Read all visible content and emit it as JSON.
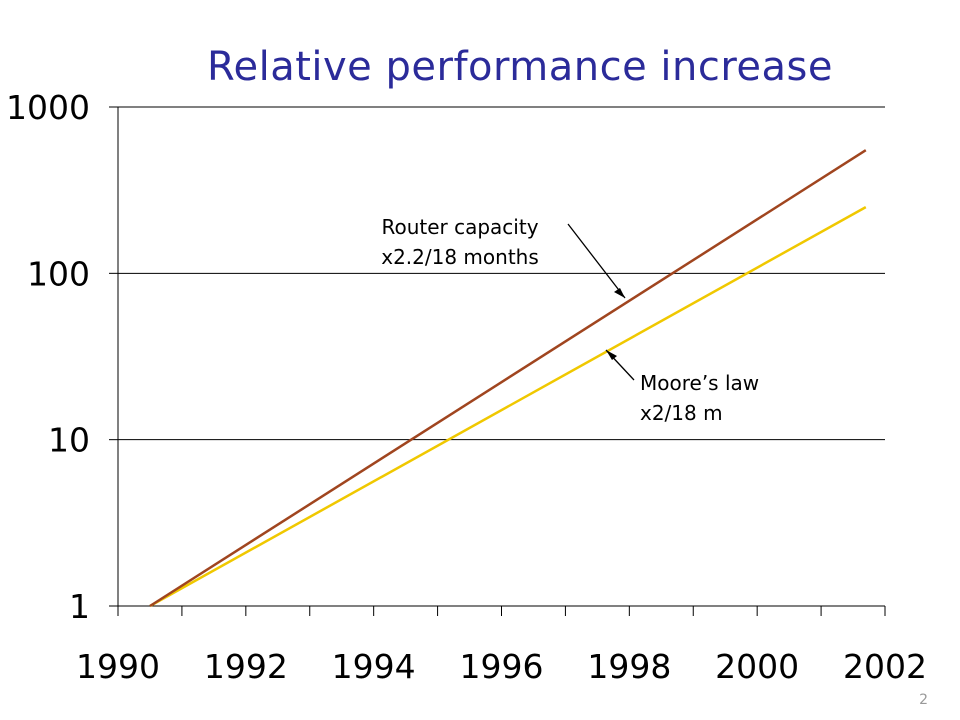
{
  "slide": {
    "title": "Relative performance increase",
    "page_number": "2"
  },
  "chart_data": {
    "type": "line",
    "title": "Relative performance increase",
    "xlabel": "",
    "ylabel": "",
    "y_scale": "log",
    "xlim": [
      1990,
      2002
    ],
    "ylim": [
      1,
      1000
    ],
    "x_ticks": [
      "1990",
      "1992",
      "1994",
      "1996",
      "1998",
      "2000",
      "2002"
    ],
    "y_ticks": [
      "1",
      "10",
      "100",
      "1000"
    ],
    "grid": "horizontal",
    "series": [
      {
        "name": "Router capacity",
        "color": "#a0451f",
        "x": [
          1990.5,
          2001.7
        ],
        "y": [
          1,
          550
        ]
      },
      {
        "name": "Moore's law",
        "color": "#f0c800",
        "x": [
          1990.5,
          2001.7
        ],
        "y": [
          1,
          250
        ]
      }
    ],
    "annotations": [
      {
        "lines": [
          "Router capacity",
          "x2.2/18 months"
        ],
        "points_to": "Router capacity"
      },
      {
        "lines": [
          "Moore’s law",
          "x2/18 m"
        ],
        "points_to": "Moore's law"
      }
    ]
  }
}
